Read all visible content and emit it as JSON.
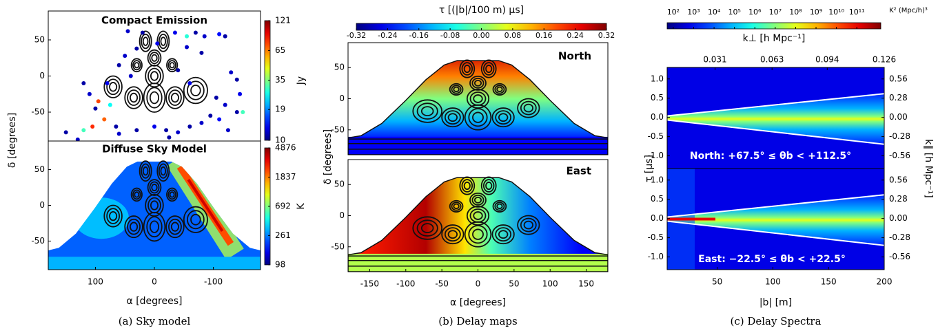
{
  "chart_data": [
    {
      "type": "scatter",
      "title": "Compact Emission",
      "x": [
        45,
        20,
        -35,
        -55,
        -70,
        -85,
        -110,
        -120,
        -55,
        -80,
        -5,
        30,
        50,
        60,
        40,
        -40,
        -60,
        -130,
        -140,
        -145,
        -120,
        -140,
        -110,
        -95,
        -80,
        -60,
        -40,
        -20,
        0,
        30,
        60,
        85,
        95,
        100,
        110,
        120,
        80,
        75,
        150,
        130,
        120,
        105,
        65,
        -125,
        -25,
        -105,
        -150
      ],
      "y": [
        62,
        60,
        60,
        55,
        60,
        55,
        58,
        55,
        40,
        32,
        45,
        38,
        28,
        15,
        0,
        8,
        -10,
        5,
        -5,
        -25,
        -40,
        -50,
        -60,
        -55,
        -65,
        -70,
        -78,
        -75,
        -70,
        -75,
        -80,
        -60,
        -35,
        -45,
        -25,
        -10,
        -10,
        -40,
        -78,
        -88,
        -75,
        -70,
        -70,
        -75,
        -85,
        -30,
        -50
      ],
      "values": [
        12,
        11,
        13,
        28,
        11,
        12,
        14,
        11,
        12,
        11,
        13,
        11,
        12,
        11,
        12,
        11,
        13,
        12,
        11,
        13,
        12,
        11,
        14,
        11,
        12,
        11,
        12,
        11,
        13,
        11,
        12,
        70,
        75,
        11,
        12,
        11,
        13,
        26,
        11,
        12,
        30,
        80,
        11,
        12,
        11,
        11,
        30
      ],
      "xlim": [
        180,
        -180
      ],
      "ylim": [
        -90,
        90
      ],
      "yticks": [
        -50,
        0,
        50
      ],
      "ylabel": "δ [degrees]",
      "colorbar": {
        "label": "Jy",
        "lim": [
          10,
          121
        ],
        "log": true,
        "ticks": [
          10,
          19,
          35,
          65,
          121
        ]
      }
    },
    {
      "type": "heatmap",
      "title": "Diffuse Sky Model",
      "xlim": [
        180,
        -180
      ],
      "ylim": [
        -90,
        90
      ],
      "xticks": [
        100,
        0,
        -100
      ],
      "yticks": [
        -50,
        0,
        50
      ],
      "xlabel": "α [degrees]",
      "colorbar": {
        "label": "K",
        "lim": [
          98,
          4876
        ],
        "log": true,
        "ticks": [
          98,
          261,
          692,
          1837,
          4876
        ]
      },
      "caption": "(a) Sky model"
    },
    {
      "type": "heatmap",
      "title": "North",
      "xlim": [
        -180,
        180
      ],
      "ylim": [
        -90,
        90
      ],
      "yticks": [
        -50,
        0,
        50
      ],
      "colorbar": {
        "label": "τ [(|b|/100 m) μs]",
        "lim": [
          -0.32,
          0.32
        ],
        "log": false,
        "ticks": [
          -0.32,
          -0.24,
          -0.16,
          -0.08,
          {
            "value": 0,
            "label": "0.00"
          },
          0.08,
          0.16,
          0.24,
          0.32
        ]
      }
    },
    {
      "type": "heatmap",
      "title": "East",
      "xlim": [
        -180,
        180
      ],
      "ylim": [
        -90,
        90
      ],
      "xticks": [
        -150,
        -100,
        -50,
        0,
        50,
        100,
        150
      ],
      "yticks": [
        -50,
        0,
        50
      ],
      "xlabel": "α [degrees]",
      "ylabel": "δ [degrees]",
      "caption": "(b) Delay maps"
    },
    {
      "type": "heatmap",
      "annotation": "North:  +67.5° ≤ θb < +112.5°",
      "xlim": [
        5,
        200
      ],
      "ylim": [
        -1.33,
        1.3
      ],
      "yticks": [
        {
          "value": -1,
          "label": "-1.0"
        },
        -0.5,
        {
          "value": 0,
          "label": "0.0"
        },
        0.5,
        {
          "value": 1,
          "label": "1.0"
        }
      ],
      "x2lim": [
        0.0041,
        0.126
      ],
      "x2ticks": [
        0.031,
        0.063,
        0.094,
        0.126
      ],
      "y2lim": [
        -0.745,
        0.728
      ],
      "y2ticks": [
        -0.56,
        -0.28,
        {
          "value": 0,
          "label": "0.00"
        },
        0.28,
        0.56
      ],
      "colorbar": {
        "label": "k⊥ [h Mpc⁻¹]",
        "unit": "K² (Mpc/h)³",
        "lim": [
          50,
          1500000000000
        ],
        "log": true,
        "ticks": [
          {
            "value": 100,
            "label": "10²"
          },
          {
            "value": 1000,
            "label": "10³"
          },
          {
            "value": 10000,
            "label": "10⁴"
          },
          {
            "value": 100000,
            "label": "10⁵"
          },
          {
            "value": 1000000,
            "label": "10⁶"
          },
          {
            "value": 10000000,
            "label": "10⁷"
          },
          {
            "value": 100000000,
            "label": "10⁸"
          },
          {
            "value": 1000000000,
            "label": "10⁹"
          },
          {
            "value": 10000000000,
            "label": "10¹⁰"
          },
          {
            "value": 100000000000,
            "label": "10¹¹"
          }
        ]
      }
    },
    {
      "type": "heatmap",
      "annotation": "East:  −22.5° ≤ θb < +22.5°",
      "xlim": [
        5,
        200
      ],
      "ylim": [
        -1.33,
        1.3
      ],
      "xticks": [
        50,
        100,
        150,
        200
      ],
      "yticks": [
        {
          "value": -1,
          "label": "-1.0"
        },
        -0.5,
        {
          "value": 0,
          "label": "0.0"
        },
        0.5,
        {
          "value": 1,
          "label": "1.0"
        }
      ],
      "y2lim": [
        -0.745,
        0.728
      ],
      "y2ticks": [
        -0.56,
        -0.28,
        {
          "value": 0,
          "label": "0.00"
        },
        0.28,
        0.56
      ],
      "xlabel": "|b| [m]",
      "ylabel": "τ [μs]",
      "y2label": "k∥ [h Mpc⁻¹]",
      "caption": "(c) Delay Spectra"
    }
  ]
}
